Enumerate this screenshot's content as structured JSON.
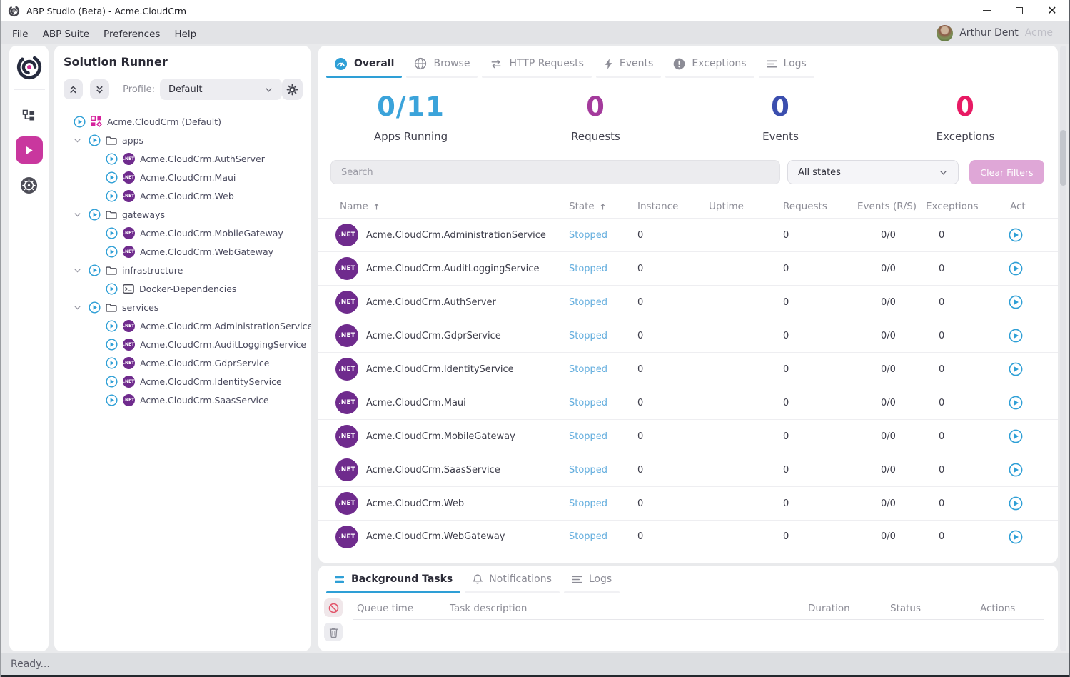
{
  "window": {
    "title": "ABP Studio (Beta) - Acme.CloudCrm"
  },
  "menubar": {
    "items": [
      "File",
      "ABP Suite",
      "Preferences",
      "Help"
    ],
    "user_name": "Arthur Dent",
    "tenant": "Acme"
  },
  "solution_runner": {
    "title": "Solution Runner",
    "profile_label": "Profile:",
    "profile_value": "Default",
    "tree": [
      {
        "type": "root",
        "icon": "solution",
        "label": "Acme.CloudCrm (Default)"
      },
      {
        "type": "folder",
        "icon": "folder",
        "label": "apps"
      },
      {
        "type": "leaf",
        "icon": "dotnet",
        "label": "Acme.CloudCrm.AuthServer"
      },
      {
        "type": "leaf",
        "icon": "dotnet",
        "label": "Acme.CloudCrm.Maui"
      },
      {
        "type": "leaf",
        "icon": "dotnet",
        "label": "Acme.CloudCrm.Web"
      },
      {
        "type": "folder",
        "icon": "folder",
        "label": "gateways"
      },
      {
        "type": "leaf",
        "icon": "dotnet",
        "label": "Acme.CloudCrm.MobileGateway"
      },
      {
        "type": "leaf",
        "icon": "dotnet",
        "label": "Acme.CloudCrm.WebGateway"
      },
      {
        "type": "folder",
        "icon": "folder",
        "label": "infrastructure"
      },
      {
        "type": "leaf",
        "icon": "terminal",
        "label": "Docker-Dependencies"
      },
      {
        "type": "folder",
        "icon": "folder",
        "label": "services"
      },
      {
        "type": "leaf",
        "icon": "dotnet",
        "label": "Acme.CloudCrm.AdministrationService"
      },
      {
        "type": "leaf",
        "icon": "dotnet",
        "label": "Acme.CloudCrm.AuditLoggingService"
      },
      {
        "type": "leaf",
        "icon": "dotnet",
        "label": "Acme.CloudCrm.GdprService"
      },
      {
        "type": "leaf",
        "icon": "dotnet",
        "label": "Acme.CloudCrm.IdentityService"
      },
      {
        "type": "leaf",
        "icon": "dotnet",
        "label": "Acme.CloudCrm.SaasService"
      }
    ]
  },
  "main": {
    "tabs": [
      {
        "label": "Overall",
        "icon": "overall",
        "active": true
      },
      {
        "label": "Browse",
        "icon": "globe",
        "active": false
      },
      {
        "label": "HTTP Requests",
        "icon": "http-arrows",
        "active": false
      },
      {
        "label": "Events",
        "icon": "lightning",
        "active": false
      },
      {
        "label": "Exceptions",
        "icon": "exclamation",
        "active": false
      },
      {
        "label": "Logs",
        "icon": "lines",
        "active": false
      }
    ],
    "stats": [
      {
        "value": "0/11",
        "label": "Apps Running",
        "color": "#3ba3da"
      },
      {
        "value": "0",
        "label": "Requests",
        "color": "#a43a9c"
      },
      {
        "value": "0",
        "label": "Events",
        "color": "#3b4eae"
      },
      {
        "value": "0",
        "label": "Exceptions",
        "color": "#e81a64"
      }
    ],
    "search_placeholder": "Search",
    "state_filter_value": "All states",
    "clear_filters_label": "Clear Filters",
    "table": {
      "columns": [
        "Name",
        "State",
        "Instance",
        "Uptime",
        "Requests",
        "Events (R/S)",
        "Exceptions",
        "Act"
      ],
      "sorted_columns": [
        0,
        1
      ],
      "rows": [
        {
          "name": "Acme.CloudCrm.AdministrationService",
          "state": "Stopped",
          "instance": "0",
          "uptime": "",
          "requests": "0",
          "events": "0/0",
          "exceptions": "0"
        },
        {
          "name": "Acme.CloudCrm.AuditLoggingService",
          "state": "Stopped",
          "instance": "0",
          "uptime": "",
          "requests": "0",
          "events": "0/0",
          "exceptions": "0"
        },
        {
          "name": "Acme.CloudCrm.AuthServer",
          "state": "Stopped",
          "instance": "0",
          "uptime": "",
          "requests": "0",
          "events": "0/0",
          "exceptions": "0"
        },
        {
          "name": "Acme.CloudCrm.GdprService",
          "state": "Stopped",
          "instance": "0",
          "uptime": "",
          "requests": "0",
          "events": "0/0",
          "exceptions": "0"
        },
        {
          "name": "Acme.CloudCrm.IdentityService",
          "state": "Stopped",
          "instance": "0",
          "uptime": "",
          "requests": "0",
          "events": "0/0",
          "exceptions": "0"
        },
        {
          "name": "Acme.CloudCrm.Maui",
          "state": "Stopped",
          "instance": "0",
          "uptime": "",
          "requests": "0",
          "events": "0/0",
          "exceptions": "0"
        },
        {
          "name": "Acme.CloudCrm.MobileGateway",
          "state": "Stopped",
          "instance": "0",
          "uptime": "",
          "requests": "0",
          "events": "0/0",
          "exceptions": "0"
        },
        {
          "name": "Acme.CloudCrm.SaasService",
          "state": "Stopped",
          "instance": "0",
          "uptime": "",
          "requests": "0",
          "events": "0/0",
          "exceptions": "0"
        },
        {
          "name": "Acme.CloudCrm.Web",
          "state": "Stopped",
          "instance": "0",
          "uptime": "",
          "requests": "0",
          "events": "0/0",
          "exceptions": "0"
        },
        {
          "name": "Acme.CloudCrm.WebGateway",
          "state": "Stopped",
          "instance": "0",
          "uptime": "",
          "requests": "0",
          "events": "0/0",
          "exceptions": "0"
        }
      ]
    }
  },
  "bottom_panel": {
    "tabs": [
      {
        "label": "Background Tasks",
        "icon": "stacked-bars",
        "active": true
      },
      {
        "label": "Notifications",
        "icon": "bell",
        "active": false
      },
      {
        "label": "Logs",
        "icon": "lines",
        "active": false
      }
    ],
    "columns": [
      "Queue time",
      "Task description",
      "Duration",
      "Status",
      "Actions"
    ]
  },
  "statusbar": {
    "text": "Ready..."
  }
}
